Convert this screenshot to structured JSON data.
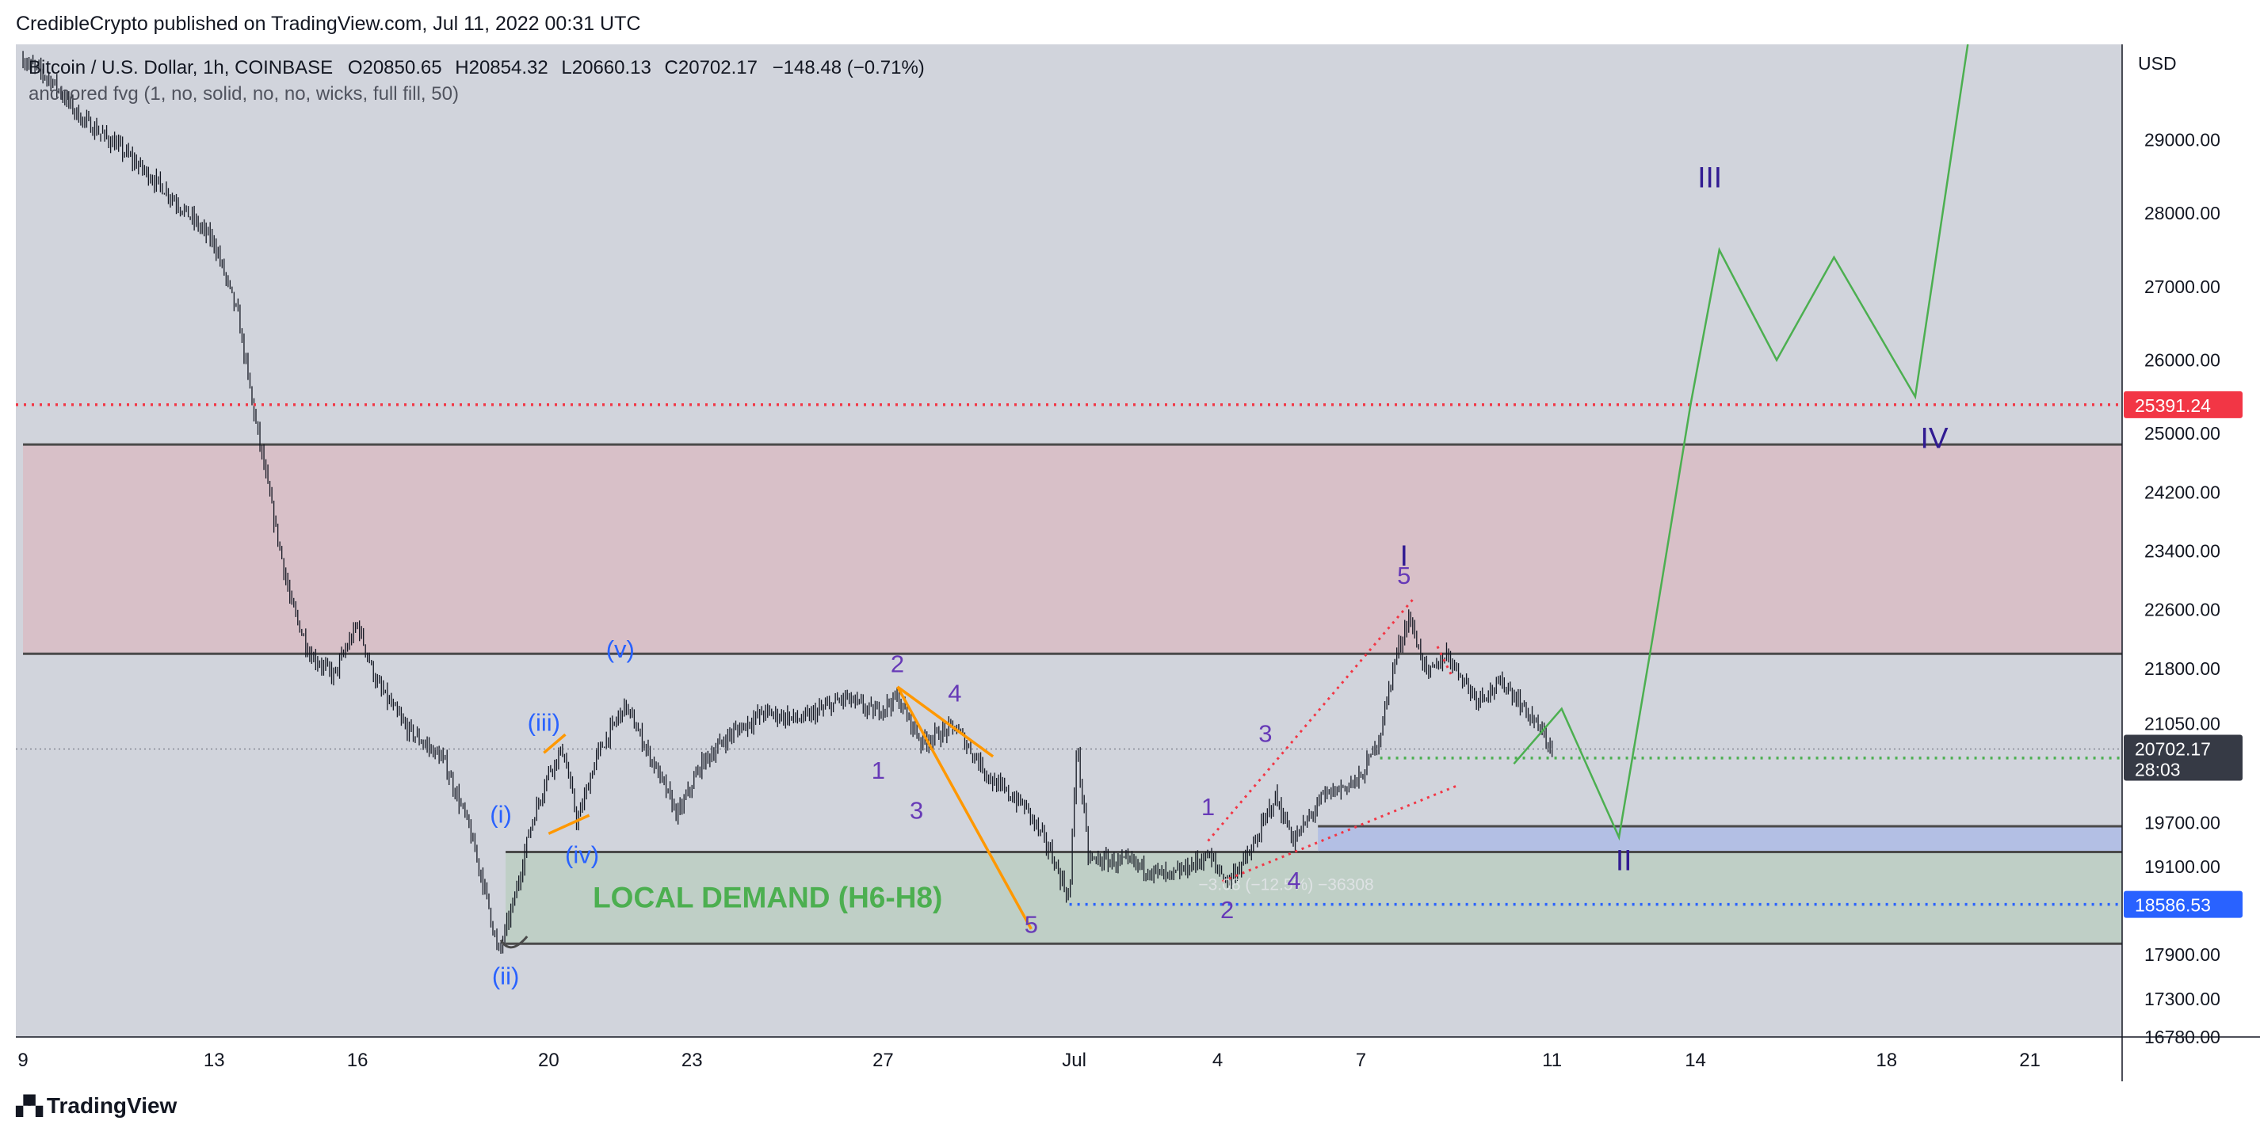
{
  "header": {
    "credit": "CredibleCrypto published on TradingView.com, Jul 11, 2022 00:31 UTC"
  },
  "footer": {
    "brand": "TradingView",
    "logo_icon": "tradingview-logo-icon"
  },
  "legend": {
    "symbol": "Bitcoin / U.S. Dollar, 1h, COINBASE",
    "open_label": "O",
    "open": "20850.65",
    "high_label": "H",
    "high": "20854.32",
    "low_label": "L",
    "low": "20660.13",
    "close_label": "C",
    "close": "20702.17",
    "change": "−148.48 (−0.71%)",
    "indicator": "anchored fvg (1, no, solid, no, no, wicks, full fill, 50)"
  },
  "colors": {
    "plot_bg": "#d1d4dc",
    "supply_zone": "#d8c0c8",
    "demand_zone": "#bfcfc6",
    "blue_zone": "#b3bfe4",
    "candles": "#131722",
    "orange": "#ff9800",
    "red": "#f23645",
    "green": "#4caf50",
    "blue_dotted": "#2962ff",
    "wave_purple": "#673ab7",
    "wave_blue": "#2962ff",
    "wave_navy": "#311b92"
  },
  "chart_data": {
    "type": "candlestick",
    "ylim": [
      16780,
      30300
    ],
    "price_unit": "USD",
    "y_ticks": [
      29000,
      28000,
      27000,
      26000,
      25000,
      24200,
      23400,
      22600,
      21800,
      21050,
      19700,
      19100,
      17900,
      17300,
      16780
    ],
    "y_tick_labels": [
      "29000.00",
      "28000.00",
      "27000.00",
      "26000.00",
      "25000.00",
      "24200.00",
      "23400.00",
      "22600.00",
      "21800.00",
      "21050.00",
      "19700.00",
      "19100.00",
      "17900.00",
      "17300.00",
      "16780.00"
    ],
    "x_ticks": [
      {
        "day": 9,
        "label": "9"
      },
      {
        "day": 13,
        "label": "13"
      },
      {
        "day": 16,
        "label": "16"
      },
      {
        "day": 20,
        "label": "20"
      },
      {
        "day": 23,
        "label": "23"
      },
      {
        "day": 27,
        "label": "27"
      },
      {
        "day": 31,
        "label": "Jul"
      },
      {
        "day": 34,
        "label": "4"
      },
      {
        "day": 37,
        "label": "7"
      },
      {
        "day": 41,
        "label": "11"
      },
      {
        "day": 44,
        "label": "14"
      },
      {
        "day": 48,
        "label": "18"
      },
      {
        "day": 51,
        "label": "21"
      }
    ],
    "price_path": [
      [
        9.0,
        30100
      ],
      [
        9.6,
        29800
      ],
      [
        10.2,
        29300
      ],
      [
        11.0,
        28900
      ],
      [
        12.0,
        28300
      ],
      [
        13.0,
        27600
      ],
      [
        13.5,
        26600
      ],
      [
        13.8,
        25400
      ],
      [
        14.2,
        24000
      ],
      [
        14.6,
        22700
      ],
      [
        15.0,
        22000
      ],
      [
        15.5,
        21700
      ],
      [
        16.0,
        22400
      ],
      [
        16.4,
        21600
      ],
      [
        17.0,
        21000
      ],
      [
        17.8,
        20550
      ],
      [
        18.3,
        19700
      ],
      [
        18.7,
        18700
      ],
      [
        18.95,
        17900
      ],
      [
        19.3,
        18700
      ],
      [
        19.6,
        19600
      ],
      [
        20.0,
        20400
      ],
      [
        20.3,
        20700
      ],
      [
        20.6,
        19700
      ],
      [
        21.0,
        20600
      ],
      [
        21.6,
        21300
      ],
      [
        22.2,
        20500
      ],
      [
        22.7,
        19800
      ],
      [
        23.2,
        20500
      ],
      [
        23.8,
        20900
      ],
      [
        24.5,
        21200
      ],
      [
        25.3,
        21100
      ],
      [
        26.2,
        21400
      ],
      [
        26.8,
        21200
      ],
      [
        27.3,
        21400
      ],
      [
        27.8,
        20800
      ],
      [
        28.5,
        21000
      ],
      [
        29.3,
        20250
      ],
      [
        30.0,
        19900
      ],
      [
        30.5,
        19300
      ],
      [
        30.9,
        18650
      ],
      [
        31.05,
        20800
      ],
      [
        31.3,
        19200
      ],
      [
        32.2,
        19150
      ],
      [
        33.0,
        18950
      ],
      [
        33.8,
        19250
      ],
      [
        34.2,
        18900
      ],
      [
        34.7,
        19300
      ],
      [
        35.2,
        20050
      ],
      [
        35.6,
        19450
      ],
      [
        36.2,
        20050
      ],
      [
        37.0,
        20300
      ],
      [
        37.4,
        20900
      ],
      [
        37.7,
        21900
      ],
      [
        38.0,
        22500
      ],
      [
        38.4,
        21700
      ],
      [
        38.8,
        22000
      ],
      [
        39.4,
        21400
      ],
      [
        40.0,
        21600
      ],
      [
        40.6,
        21100
      ],
      [
        41.0,
        20700
      ]
    ],
    "levels": [
      {
        "price": 25391.24,
        "label": "25391.24",
        "color": "#f23645",
        "style": "dotted"
      },
      {
        "price": 20579.3,
        "label": "20579.30",
        "color": "#4caf50",
        "style": "dotted"
      },
      {
        "price": 18586.53,
        "label": "18586.53",
        "color": "#2962ff",
        "style": "dotted"
      }
    ],
    "last_price": {
      "price": 20702.17,
      "label": "20702.17",
      "countdown": "28:03"
    },
    "zones": [
      {
        "name": "supply",
        "from_day": 9,
        "to_day": 55,
        "low": 22000,
        "high": 24850
      },
      {
        "name": "local-demand",
        "from_day": 19.1,
        "to_day": 55,
        "low": 18050,
        "high": 19300,
        "label": "LOCAL DEMAND (H6-H8)"
      },
      {
        "name": "blue-fvg",
        "from_day": 36.1,
        "to_day": 55,
        "low": 19300,
        "high": 19650
      }
    ],
    "projection": [
      [
        40.2,
        20500
      ],
      [
        41.2,
        21250
      ],
      [
        42.4,
        19500
      ],
      [
        43.1,
        22200
      ],
      [
        43.9,
        25400
      ],
      [
        44.5,
        27500
      ],
      [
        45.7,
        26000
      ],
      [
        46.9,
        27400
      ],
      [
        48.6,
        25500
      ],
      [
        49.7,
        30300
      ]
    ],
    "wave_labels": [
      {
        "text": "(i)",
        "day": 19.0,
        "price": 19700,
        "color": "wave_blue"
      },
      {
        "text": "(ii)",
        "day": 19.1,
        "price": 17500,
        "color": "wave_blue"
      },
      {
        "text": "(iii)",
        "day": 19.9,
        "price": 20950,
        "color": "wave_blue"
      },
      {
        "text": "(iv)",
        "day": 20.7,
        "price": 19150,
        "color": "wave_blue"
      },
      {
        "text": "(v)",
        "day": 21.5,
        "price": 21950,
        "color": "wave_blue"
      },
      {
        "text": "1",
        "day": 26.9,
        "price": 20300,
        "color": "wave_purple"
      },
      {
        "text": "2",
        "day": 27.3,
        "price": 21750,
        "color": "wave_purple"
      },
      {
        "text": "3",
        "day": 27.7,
        "price": 19750,
        "color": "wave_purple"
      },
      {
        "text": "4",
        "day": 28.5,
        "price": 21350,
        "color": "wave_purple"
      },
      {
        "text": "5",
        "day": 30.1,
        "price": 18200,
        "color": "wave_purple"
      },
      {
        "text": "1",
        "day": 33.8,
        "price": 19800,
        "color": "wave_purple"
      },
      {
        "text": "2",
        "day": 34.2,
        "price": 18400,
        "color": "wave_purple"
      },
      {
        "text": "3",
        "day": 35.0,
        "price": 20800,
        "color": "wave_purple"
      },
      {
        "text": "4",
        "day": 35.6,
        "price": 18800,
        "color": "wave_purple"
      },
      {
        "text": "5",
        "day": 37.9,
        "price": 22950,
        "color": "wave_purple"
      },
      {
        "text": "I",
        "day": 37.9,
        "price": 23200,
        "color": "wave_navy"
      },
      {
        "text": "II",
        "day": 42.5,
        "price": 19050,
        "color": "wave_navy"
      },
      {
        "text": "III",
        "day": 44.3,
        "price": 28350,
        "color": "wave_navy"
      },
      {
        "text": "IV",
        "day": 49.0,
        "price": 24800,
        "color": "wave_navy"
      }
    ],
    "orange_lines": [
      [
        [
          19.9,
          20650
        ],
        [
          20.35,
          20900
        ]
      ],
      [
        [
          20.0,
          19550
        ],
        [
          20.85,
          19800
        ]
      ],
      [
        [
          27.3,
          21550
        ],
        [
          30.1,
          18250
        ]
      ],
      [
        [
          27.3,
          21550
        ],
        [
          29.3,
          20600
        ]
      ]
    ],
    "red_dotted_lines": [
      [
        [
          33.8,
          19450
        ],
        [
          38.1,
          22750
        ]
      ],
      [
        [
          34.1,
          18900
        ],
        [
          39.0,
          20200
        ]
      ],
      [
        [
          38.6,
          22100
        ],
        [
          38.9,
          21700
        ]
      ]
    ],
    "faint_measure_text": "−3.08 (−12.5%) −36308"
  }
}
